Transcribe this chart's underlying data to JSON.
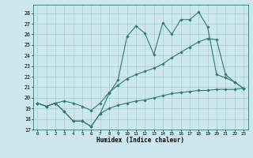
{
  "xlabel": "Humidex (Indice chaleur)",
  "background_color": "#cce8ee",
  "line_color": "#2e7d6e",
  "grid_color": "#aaccd4",
  "xlim": [
    -0.5,
    23.5
  ],
  "ylim": [
    17,
    28.8
  ],
  "xticks": [
    0,
    1,
    2,
    3,
    4,
    5,
    6,
    7,
    8,
    9,
    10,
    11,
    12,
    13,
    14,
    15,
    16,
    17,
    18,
    19,
    20,
    21,
    22,
    23
  ],
  "yticks": [
    17,
    18,
    19,
    20,
    21,
    22,
    23,
    24,
    25,
    26,
    27,
    28
  ],
  "line1_y": [
    19.5,
    19.2,
    19.5,
    18.7,
    17.8,
    17.8,
    17.3,
    18.5,
    20.4,
    21.7,
    25.8,
    26.8,
    26.1,
    24.1,
    27.1,
    26.0,
    27.4,
    27.4,
    28.1,
    26.7,
    22.2,
    21.9,
    21.5,
    20.9
  ],
  "line2_y": [
    19.5,
    19.2,
    19.5,
    19.7,
    19.5,
    19.2,
    18.8,
    19.5,
    20.5,
    21.2,
    21.8,
    22.2,
    22.5,
    22.8,
    23.2,
    23.8,
    24.3,
    24.8,
    25.3,
    25.6,
    25.5,
    22.2,
    21.5,
    20.9
  ],
  "line3_y": [
    19.5,
    19.2,
    19.5,
    18.7,
    17.8,
    17.8,
    17.3,
    18.5,
    19.0,
    19.3,
    19.5,
    19.7,
    19.8,
    20.0,
    20.2,
    20.4,
    20.5,
    20.6,
    20.7,
    20.7,
    20.8,
    20.8,
    20.8,
    20.9
  ]
}
